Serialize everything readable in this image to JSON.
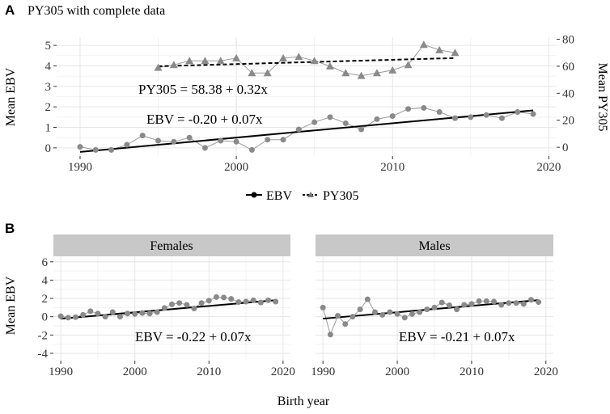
{
  "chart_data": [
    {
      "type": "line",
      "panel_label": "A",
      "title": "PY305 with complete data",
      "xlabel": "",
      "ylabel": "Mean EBV",
      "ylabel_right": "Mean PY305",
      "xlim": [
        1988.5,
        2020.5
      ],
      "ylim": [
        -0.4,
        5.4
      ],
      "ylim_right": [
        -6.5,
        81.5
      ],
      "xticks": [
        1990,
        2000,
        2010,
        2020
      ],
      "yticks": [
        0,
        1,
        2,
        3,
        4,
        5
      ],
      "yticks_right": [
        0,
        20,
        40,
        60,
        80
      ],
      "series": [
        {
          "name": "EBV",
          "marker": "circle",
          "axis": "left",
          "x": [
            1990,
            1991,
            1992,
            1993,
            1994,
            1995,
            1996,
            1997,
            1998,
            1999,
            2000,
            2001,
            2002,
            2003,
            2004,
            2005,
            2006,
            2007,
            2008,
            2009,
            2010,
            2011,
            2012,
            2013,
            2014,
            2015,
            2016,
            2017,
            2018,
            2019
          ],
          "y": [
            0.05,
            -0.1,
            -0.1,
            0.15,
            0.6,
            0.35,
            0.3,
            0.5,
            0.0,
            0.35,
            0.3,
            -0.1,
            0.4,
            0.4,
            0.9,
            1.25,
            1.5,
            1.2,
            0.9,
            1.4,
            1.55,
            1.9,
            1.95,
            1.75,
            1.45,
            1.5,
            1.6,
            1.45,
            1.75,
            1.65
          ]
        },
        {
          "name": "PY305",
          "marker": "triangle",
          "axis": "right",
          "x": [
            1995,
            1996,
            1997,
            1998,
            1999,
            2000,
            2001,
            2002,
            2003,
            2004,
            2005,
            2006,
            2007,
            2008,
            2009,
            2010,
            2011,
            2012,
            2013,
            2014
          ],
          "y": [
            59,
            61,
            64,
            64,
            64,
            66,
            55,
            55,
            66,
            67,
            64,
            60,
            55,
            53,
            55,
            57,
            61,
            76,
            72,
            70
          ]
        }
      ],
      "fits": [
        {
          "series": "EBV",
          "axis": "left",
          "style": "solid",
          "x0": 1990,
          "x1": 2019,
          "intercept": -0.2,
          "slope": 0.07,
          "label": "EBV = -0.20 + 0.07x"
        },
        {
          "series": "PY305",
          "axis": "right",
          "style": "dashed",
          "x0": 1995,
          "x1": 2014,
          "intercept": 58.38,
          "slope": 0.32,
          "label": "PY305 = 58.38 + 0.32x"
        }
      ],
      "legend": {
        "position": "bottom",
        "entries": [
          "EBV",
          "PY305"
        ]
      }
    },
    {
      "type": "line",
      "panel_label": "B",
      "title": "",
      "xlabel": "Birth year",
      "ylabel": "Mean EBV",
      "xlim": [
        1989,
        2021
      ],
      "ylim": [
        -4.8,
        6.6
      ],
      "xticks": [
        1990,
        2000,
        2010,
        2020
      ],
      "yticks": [
        -4,
        -2,
        0,
        2,
        4,
        6
      ],
      "facets": [
        {
          "name": "Females",
          "x": [
            1990,
            1991,
            1992,
            1993,
            1994,
            1995,
            1996,
            1997,
            1998,
            1999,
            2000,
            2001,
            2002,
            2003,
            2004,
            2005,
            2006,
            2007,
            2008,
            2009,
            2010,
            2011,
            2012,
            2013,
            2014,
            2015,
            2016,
            2017,
            2018,
            2019
          ],
          "y": [
            0.05,
            -0.1,
            -0.05,
            0.2,
            0.6,
            0.35,
            0.0,
            0.5,
            0.0,
            0.35,
            0.3,
            0.4,
            0.35,
            0.5,
            0.95,
            1.35,
            1.5,
            1.3,
            0.9,
            1.5,
            1.75,
            2.15,
            2.1,
            1.95,
            1.6,
            1.65,
            1.8,
            1.55,
            1.8,
            1.65
          ],
          "fit": {
            "x0": 1990,
            "x1": 2019,
            "intercept": -0.22,
            "slope": 0.07,
            "label": "EBV = -0.22 + 0.07x"
          }
        },
        {
          "name": "Males",
          "x": [
            1990,
            1991,
            1992,
            1993,
            1994,
            1995,
            1996,
            1997,
            1998,
            1999,
            2000,
            2001,
            2002,
            2003,
            2004,
            2005,
            2006,
            2007,
            2008,
            2009,
            2010,
            2011,
            2012,
            2013,
            2014,
            2015,
            2016,
            2017,
            2018,
            2019
          ],
          "y": [
            1.0,
            -1.95,
            0.1,
            -0.8,
            0.0,
            0.8,
            1.9,
            0.5,
            0.2,
            0.5,
            0.3,
            -0.1,
            0.3,
            0.5,
            0.8,
            1.0,
            1.55,
            1.25,
            0.8,
            1.3,
            1.4,
            1.7,
            1.7,
            1.65,
            1.3,
            1.5,
            1.5,
            1.4,
            1.85,
            1.6
          ],
          "fit": {
            "x0": 1990,
            "x1": 2019,
            "intercept": -0.21,
            "slope": 0.07,
            "label": "EBV = -0.21 + 0.07x"
          }
        }
      ]
    }
  ]
}
